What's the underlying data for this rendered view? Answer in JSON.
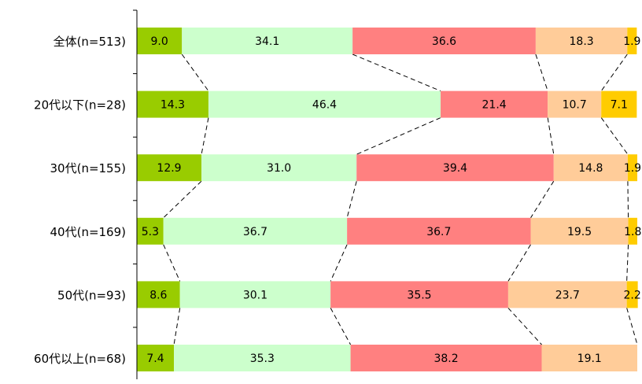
{
  "chart_data": {
    "type": "bar",
    "orientation": "horizontal",
    "stacked": "percent",
    "categories": [
      "全体(n=513)",
      "20代以下(n=28)",
      "30代(n=155)",
      "40代(n=169)",
      "50代(n=93)",
      "60代以上(n=68)"
    ],
    "series": [
      {
        "values": [
          9.0,
          14.3,
          12.9,
          5.3,
          8.6,
          7.4
        ],
        "labels": [
          "9.0",
          "14.3",
          "12.9",
          "5.3",
          "8.6",
          "7.4"
        ]
      },
      {
        "values": [
          34.1,
          46.4,
          31.0,
          36.7,
          30.1,
          35.3
        ],
        "labels": [
          "34.1",
          "46.4",
          "31.0",
          "36.7",
          "30.1",
          "35.3"
        ]
      },
      {
        "values": [
          36.6,
          21.4,
          39.4,
          36.7,
          35.5,
          38.2
        ],
        "labels": [
          "36.6",
          "21.4",
          "39.4",
          "36.7",
          "35.5",
          "38.2"
        ]
      },
      {
        "values": [
          18.3,
          10.7,
          14.8,
          19.5,
          23.7,
          19.1
        ],
        "labels": [
          "18.3",
          "10.7",
          "14.8",
          "19.5",
          "23.7",
          "19.1"
        ]
      },
      {
        "values": [
          1.9,
          7.1,
          1.9,
          1.8,
          2.2,
          0.0
        ],
        "labels": [
          "1.9",
          "7.1",
          "1.9",
          "1.8",
          "2.2",
          ""
        ]
      }
    ],
    "colors": [
      "#99cc00",
      "#ccffcc",
      "#ff8080",
      "#ffcc99",
      "#ffcc00"
    ],
    "xlim": [
      0,
      100
    ],
    "legend": "none",
    "grid": false,
    "series_connectors": "dashed"
  }
}
